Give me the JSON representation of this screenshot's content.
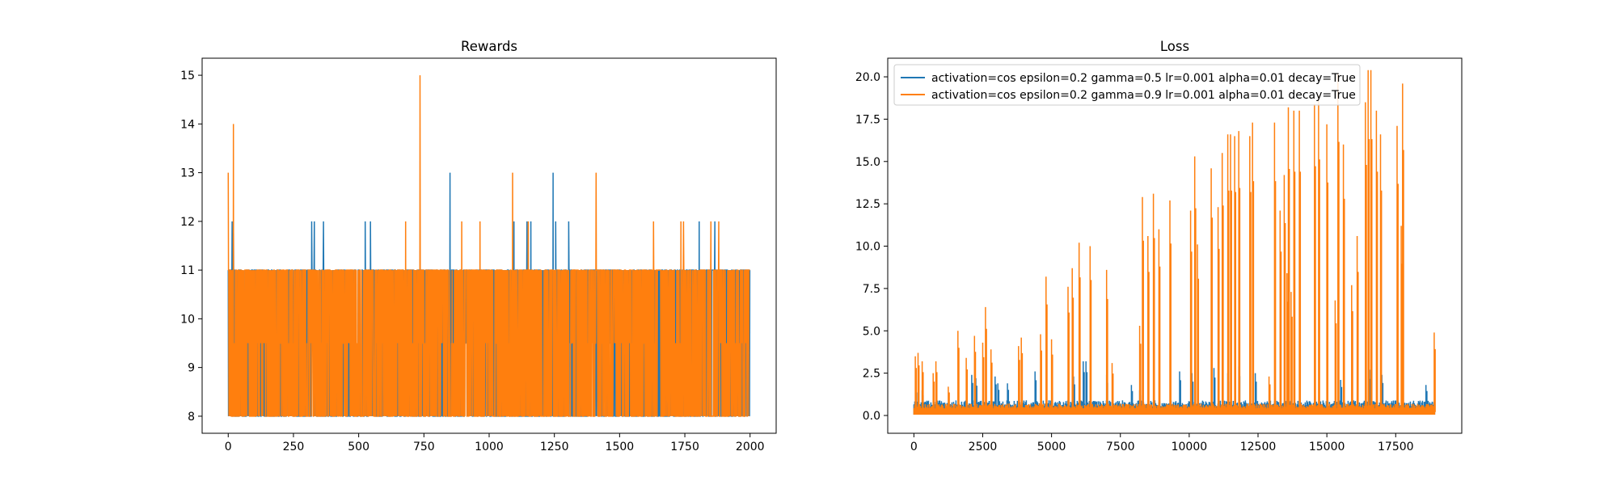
{
  "chart_data": [
    {
      "type": "line",
      "title": "Rewards",
      "xlabel": "",
      "ylabel": "",
      "xlim": [
        -100,
        2100
      ],
      "ylim": [
        7.65,
        15.35
      ],
      "xticks": [
        0,
        250,
        500,
        750,
        1000,
        1250,
        1500,
        1750,
        2000
      ],
      "yticks": [
        8,
        9,
        10,
        11,
        12,
        13,
        14,
        15
      ],
      "grid": false,
      "legend": "none",
      "n_points": 2000,
      "series": [
        {
          "color": "#1f77b4",
          "base_min": 8,
          "base_max": 11,
          "peaks": [
            [
              15,
              12
            ],
            [
              20,
              12
            ],
            [
              320,
              12
            ],
            [
              330,
              12
            ],
            [
              365,
              12
            ],
            [
              525,
              12
            ],
            [
              545,
              12
            ],
            [
              850,
              13
            ],
            [
              1095,
              12
            ],
            [
              1145,
              12
            ],
            [
              1160,
              12
            ],
            [
              1245,
              13
            ],
            [
              1255,
              12
            ],
            [
              1305,
              12
            ],
            [
              1805,
              12
            ],
            [
              1865,
              12
            ]
          ]
        },
        {
          "color": "#ff7f0e",
          "base_min": 8,
          "base_max": 11,
          "peaks": [
            [
              0,
              13
            ],
            [
              20,
              14
            ],
            [
              680,
              12
            ],
            [
              735,
              15
            ],
            [
              895,
              12
            ],
            [
              965,
              12
            ],
            [
              1090,
              13
            ],
            [
              1150,
              12
            ],
            [
              1410,
              13
            ],
            [
              1630,
              12
            ],
            [
              1735,
              12
            ],
            [
              1745,
              12
            ],
            [
              1850,
              12
            ],
            [
              1880,
              12
            ]
          ]
        }
      ]
    },
    {
      "type": "line",
      "title": "Loss",
      "xlabel": "",
      "ylabel": "",
      "xlim": [
        -950,
        19900
      ],
      "ylim": [
        -1.05,
        21.1
      ],
      "xticks": [
        0,
        2500,
        5000,
        7500,
        10000,
        12500,
        15000,
        17500
      ],
      "xtick_labels": [
        "0",
        "2500",
        "5000",
        "7500",
        "10000",
        "12500",
        "15000",
        "17500"
      ],
      "yticks": [
        0,
        2.5,
        5,
        7.5,
        10,
        12.5,
        15,
        17.5,
        20
      ],
      "ytick_labels": [
        "0.0",
        "2.5",
        "5.0",
        "7.5",
        "10.0",
        "12.5",
        "15.0",
        "17.5",
        "20.0"
      ],
      "grid": false,
      "legend": "upper-left",
      "n_points": 18900,
      "series": [
        {
          "name": "activation=cos epsilon=0.2 gamma=0.5 lr=0.001 alpha=0.01 decay=True",
          "color": "#1f77b4",
          "base_max": 0.9,
          "peaks": [
            [
              60,
              1.7
            ],
            [
              300,
              1.5
            ],
            [
              2100,
              2.4
            ],
            [
              2250,
              2.2
            ],
            [
              2950,
              2.3
            ],
            [
              3050,
              1.9
            ],
            [
              3400,
              1.9
            ],
            [
              4400,
              2.6
            ],
            [
              5800,
              2.3
            ],
            [
              6150,
              3.2
            ],
            [
              6250,
              3.2
            ],
            [
              7000,
              2.4
            ],
            [
              7900,
              1.8
            ],
            [
              8200,
              1.5
            ],
            [
              9650,
              2.6
            ],
            [
              10100,
              2.5
            ],
            [
              10900,
              2.8
            ],
            [
              11400,
              2.5
            ],
            [
              11800,
              2.9
            ],
            [
              12400,
              2.5
            ],
            [
              15500,
              2.1
            ],
            [
              16550,
              2.7
            ],
            [
              17000,
              2.4
            ],
            [
              18600,
              1.8
            ]
          ]
        },
        {
          "name": "activation=cos epsilon=0.2 gamma=0.9 lr=0.001 alpha=0.01 decay=True",
          "color": "#ff7f0e",
          "base_max": 0.7,
          "peaks": [
            [
              50,
              3.5
            ],
            [
              150,
              3.7
            ],
            [
              300,
              3.2
            ],
            [
              700,
              2.5
            ],
            [
              800,
              3.2
            ],
            [
              1250,
              1.7
            ],
            [
              1600,
              5.0
            ],
            [
              1900,
              3.4
            ],
            [
              2200,
              4.7
            ],
            [
              2500,
              4.3
            ],
            [
              2600,
              6.4
            ],
            [
              2800,
              3.9
            ],
            [
              3800,
              4.1
            ],
            [
              3900,
              4.6
            ],
            [
              4600,
              4.8
            ],
            [
              4800,
              8.2
            ],
            [
              5000,
              4.5
            ],
            [
              5600,
              7.6
            ],
            [
              5750,
              8.7
            ],
            [
              6000,
              10.2
            ],
            [
              6400,
              10.0
            ],
            [
              7000,
              8.6
            ],
            [
              7200,
              3.1
            ],
            [
              8200,
              5.3
            ],
            [
              8300,
              12.9
            ],
            [
              8500,
              10.6
            ],
            [
              8700,
              13.1
            ],
            [
              8900,
              11.0
            ],
            [
              9300,
              12.7
            ],
            [
              10050,
              12.1
            ],
            [
              10200,
              15.3
            ],
            [
              10300,
              10.1
            ],
            [
              10800,
              14.6
            ],
            [
              11050,
              12.3
            ],
            [
              11200,
              15.5
            ],
            [
              11400,
              16.6
            ],
            [
              11500,
              16.6
            ],
            [
              11650,
              16.5
            ],
            [
              11800,
              16.8
            ],
            [
              12200,
              16.5
            ],
            [
              12300,
              17.3
            ],
            [
              12900,
              2.3
            ],
            [
              13100,
              17.3
            ],
            [
              13300,
              12.1
            ],
            [
              13450,
              14.2
            ],
            [
              13550,
              8.4
            ],
            [
              13600,
              18.2
            ],
            [
              13700,
              7.3
            ],
            [
              13800,
              18.0
            ],
            [
              14000,
              18.0
            ],
            [
              14550,
              18.4
            ],
            [
              14700,
              18.9
            ],
            [
              15000,
              17.2
            ],
            [
              15300,
              6.8
            ],
            [
              15400,
              20.2
            ],
            [
              15600,
              16.0
            ],
            [
              15900,
              7.7
            ],
            [
              16100,
              10.6
            ],
            [
              16400,
              18.5
            ],
            [
              16500,
              20.4
            ],
            [
              16600,
              20.4
            ],
            [
              16800,
              18.0
            ],
            [
              16950,
              16.6
            ],
            [
              17550,
              17.1
            ],
            [
              17700,
              11.2
            ],
            [
              17750,
              19.6
            ],
            [
              18900,
              4.9
            ]
          ]
        }
      ]
    }
  ]
}
